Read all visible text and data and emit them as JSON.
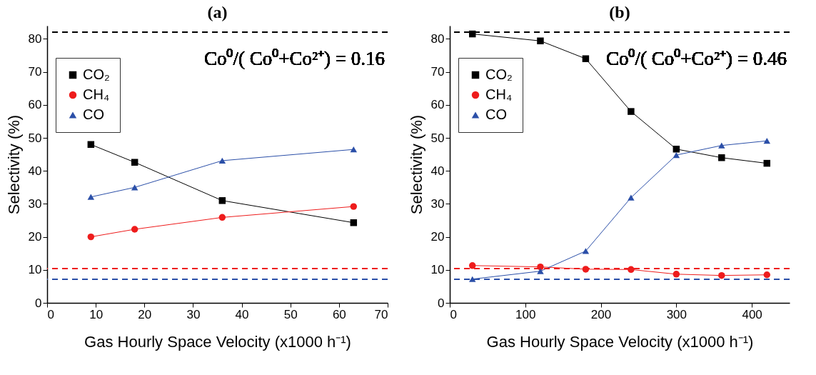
{
  "chart_data": [
    {
      "type": "line",
      "title": "(a)",
      "xlabel": "Gas Hourly Space Velocity (x1000 h⁻¹)",
      "ylabel": "Selectivity (%)",
      "x": [
        9,
        18,
        36,
        63
      ],
      "series": [
        {
          "name": "CO₂",
          "color": "#000000",
          "marker": "square",
          "values": [
            48,
            42.6,
            31,
            24.3
          ]
        },
        {
          "name": "CH₄",
          "color": "#ee1c1c",
          "marker": "circle",
          "values": [
            20,
            22.3,
            25.9,
            29.2
          ]
        },
        {
          "name": "CO",
          "color": "#2b4fa8",
          "marker": "triangle",
          "values": [
            32.1,
            35,
            43.1,
            46.5
          ]
        }
      ],
      "xlim": [
        0,
        70
      ],
      "xticks": [
        0,
        10,
        20,
        30,
        40,
        50,
        60,
        70
      ],
      "ylim": [
        0,
        84
      ],
      "yticks": [
        0,
        10,
        20,
        30,
        40,
        50,
        60,
        70,
        80
      ],
      "ref_lines": [
        {
          "axis": "y",
          "value": 82,
          "color": "#000000",
          "line_style": "dashed"
        },
        {
          "axis": "y",
          "value": 10.4,
          "color": "#ee1c1c",
          "line_style": "dashed"
        },
        {
          "axis": "y",
          "value": 7.2,
          "color": "#2b4fa8",
          "line_style": "dashed"
        }
      ],
      "annotations": [
        "Co⁰/( Co⁰+Co²⁺) = 0.16"
      ],
      "legend": "top left",
      "grid": false
    },
    {
      "type": "line",
      "title": "(b)",
      "xlabel": "Gas Hourly Space Velocity (x1000 h⁻¹)",
      "ylabel": "Selectivity (%)",
      "x": [
        30,
        120,
        180,
        240,
        300,
        360,
        420
      ],
      "series": [
        {
          "name": "CO₂",
          "color": "#000000",
          "marker": "square",
          "values": [
            81.5,
            79.4,
            74,
            58,
            46.6,
            44,
            42.3
          ]
        },
        {
          "name": "CH₄",
          "color": "#ee1c1c",
          "marker": "circle",
          "values": [
            11.3,
            10.9,
            10.2,
            10.1,
            8.7,
            8.3,
            8.5
          ]
        },
        {
          "name": "CO",
          "color": "#2b4fa8",
          "marker": "triangle",
          "values": [
            7.2,
            9.6,
            15.7,
            31.9,
            44.8,
            47.7,
            49.1
          ]
        }
      ],
      "xlim": [
        0,
        450
      ],
      "xticks": [
        0,
        100,
        200,
        300,
        400
      ],
      "ylim": [
        0,
        84
      ],
      "yticks": [
        0,
        10,
        20,
        30,
        40,
        50,
        60,
        70,
        80
      ],
      "ref_lines": [
        {
          "axis": "y",
          "value": 82,
          "color": "#000000",
          "line_style": "dashed"
        },
        {
          "axis": "y",
          "value": 10.4,
          "color": "#ee1c1c",
          "line_style": "dashed"
        },
        {
          "axis": "y",
          "value": 7.2,
          "color": "#2b4fa8",
          "line_style": "dashed"
        }
      ],
      "annotations": [
        "Co⁰/( Co⁰+Co²⁺) = 0.46"
      ],
      "legend": "top left",
      "grid": false
    }
  ]
}
